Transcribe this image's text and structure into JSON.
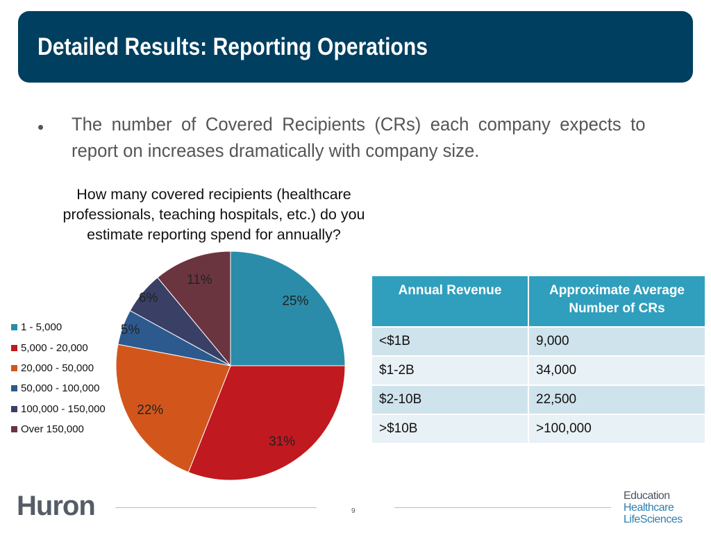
{
  "header": {
    "title": "Detailed Results: Reporting Operations"
  },
  "bullet": {
    "symbol": "•",
    "text": "The number of Covered Recipients (CRs) each company expects to report on increases dramatically with company size."
  },
  "chart_data": {
    "type": "pie",
    "title": "How many covered recipients (healthcare professionals, teaching hospitals, etc.) do you estimate reporting spend for annually?",
    "legend_position": "left",
    "start_angle_deg": 0,
    "direction": "clockwise",
    "slices": [
      {
        "label": "1 - 5,000",
        "value": 25,
        "display": "25%",
        "color": "#2a8ca8"
      },
      {
        "label": "5,000 - 20,000",
        "value": 31,
        "display": "31%",
        "color": "#c0191f"
      },
      {
        "label": "20,000 - 50,000",
        "value": 22,
        "display": "22%",
        "color": "#d2561c"
      },
      {
        "label": "50,000 - 100,000",
        "value": 5,
        "display": "5%",
        "color": "#2d5a8e"
      },
      {
        "label": "100,000 - 150,000",
        "value": 6,
        "display": "6%",
        "color": "#3a3f66"
      },
      {
        "label": "Over 150,000",
        "value": 11,
        "display": "11%",
        "color": "#6b3540"
      }
    ]
  },
  "table": {
    "headers": [
      "Annual Revenue",
      "Approximate Average Number of CRs"
    ],
    "rows": [
      [
        "<$1B",
        "9,000"
      ],
      [
        "$1-2B",
        "34,000"
      ],
      [
        "$2-10B",
        "22,500"
      ],
      [
        ">$10B",
        ">100,000"
      ]
    ]
  },
  "footer": {
    "logo_left": "Huron",
    "page_number": "9",
    "logo_right": [
      "Education",
      "Healthcare",
      "LifeSciences"
    ]
  }
}
